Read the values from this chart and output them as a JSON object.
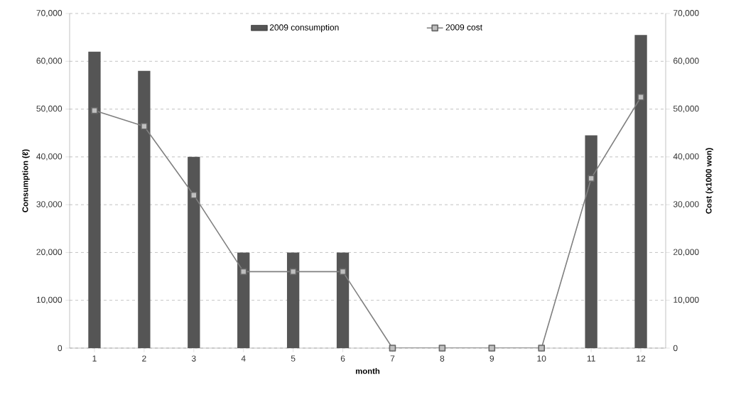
{
  "chart_data": {
    "type": "bar",
    "xlabel": "month",
    "ylabel": "Consumption (ℓ)",
    "y2label": "Cost (x1000 won)",
    "categories": [
      "1",
      "2",
      "3",
      "4",
      "5",
      "6",
      "7",
      "8",
      "9",
      "10",
      "11",
      "12"
    ],
    "series": [
      {
        "name": "2009 consumption",
        "color": "#555555",
        "values": [
          62000,
          58000,
          40000,
          20000,
          20000,
          20000,
          0,
          0,
          0,
          0,
          44500,
          65500
        ]
      },
      {
        "name": "2009 cost",
        "type": "line",
        "axis": "y2",
        "color": "#808080",
        "marker": "square",
        "values": [
          49700,
          46400,
          32000,
          16000,
          16000,
          16000,
          0,
          0,
          0,
          0,
          35500,
          52500
        ]
      }
    ],
    "ylim": [
      0,
      70000
    ],
    "yticks": [
      {
        "value": 0,
        "label": "0"
      },
      {
        "value": 10000,
        "label": "10,000"
      },
      {
        "value": 20000,
        "label": "20,000"
      },
      {
        "value": 30000,
        "label": "30,000"
      },
      {
        "value": 40000,
        "label": "40,000"
      },
      {
        "value": 50000,
        "label": "50,000"
      },
      {
        "value": 60000,
        "label": "60,000"
      },
      {
        "value": 70000,
        "label": "70,000"
      }
    ],
    "y2lim": [
      0,
      70000
    ],
    "y2ticks": [
      {
        "value": 0,
        "label": "0"
      },
      {
        "value": 10000,
        "label": "10,000"
      },
      {
        "value": 20000,
        "label": "20,000"
      },
      {
        "value": 30000,
        "label": "30,000"
      },
      {
        "value": 40000,
        "label": "40,000"
      },
      {
        "value": 50000,
        "label": "50,000"
      },
      {
        "value": 60000,
        "label": "60,000"
      },
      {
        "value": 70000,
        "label": "70,000"
      }
    ],
    "grid": "y",
    "legend": "top"
  }
}
